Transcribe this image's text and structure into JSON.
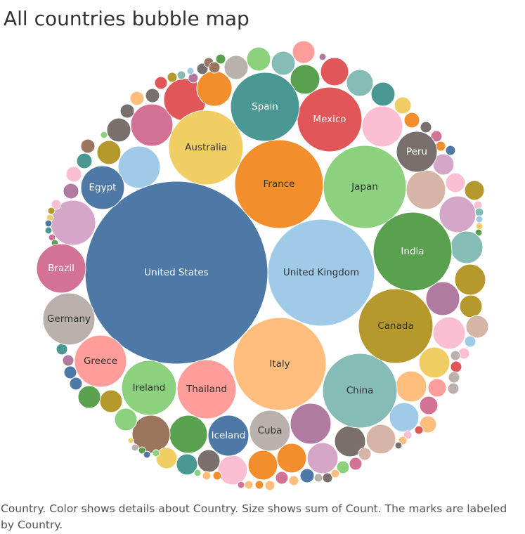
{
  "title": "All countries bubble map",
  "caption": "Country.  Color shows details about Country.  Size shows sum of Count.  The marks are labeled by Country.",
  "chart_data": {
    "type": "bubble",
    "title": "All countries bubble map",
    "dimension": "Country",
    "measure": "Count",
    "labeled_series": [
      {
        "name": "United States",
        "color": "#4E79A7"
      },
      {
        "name": "United Kingdom",
        "color": "#A0CBE8"
      },
      {
        "name": "France",
        "color": "#F28E2B"
      },
      {
        "name": "Japan",
        "color": "#8CD17D"
      },
      {
        "name": "Italy",
        "color": "#FFBE7D"
      },
      {
        "name": "China",
        "color": "#86BCB6"
      },
      {
        "name": "Canada",
        "color": "#B6992D"
      },
      {
        "name": "India",
        "color": "#59A14F"
      },
      {
        "name": "Mexico",
        "color": "#E15759"
      },
      {
        "name": "Spain",
        "color": "#499894"
      },
      {
        "name": "Australia",
        "color": "#F1CE63"
      },
      {
        "name": "Thailand",
        "color": "#FF9D9A"
      },
      {
        "name": "Ireland",
        "color": "#8CD17D"
      },
      {
        "name": "Greece",
        "color": "#FF9D9A"
      },
      {
        "name": "Germany",
        "color": "#BAB0AC"
      },
      {
        "name": "Brazil",
        "color": "#D37295"
      },
      {
        "name": "Egypt",
        "color": "#4E79A7"
      },
      {
        "name": "Peru",
        "color": "#79706E"
      },
      {
        "name": "Iceland",
        "color": "#4E79A7"
      },
      {
        "name": "Cuba",
        "color": "#BAB0AC"
      }
    ]
  }
}
